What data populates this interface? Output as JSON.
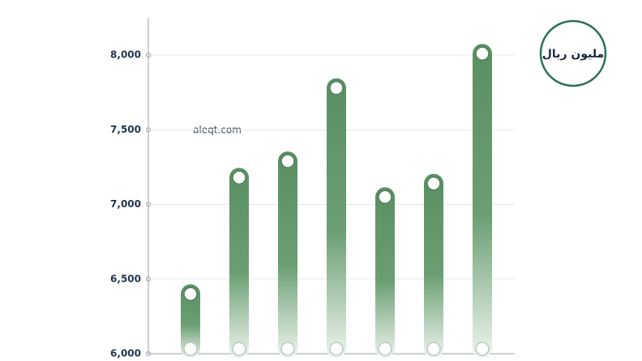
{
  "chart_data": {
    "type": "bar",
    "watermark": "aleqt.com",
    "unit_badge": "مليون ريال",
    "categories": [
      null,
      null,
      null,
      null,
      null,
      null,
      null
    ],
    "values": [
      6400,
      7180,
      7290,
      7780,
      7050,
      7140,
      8010
    ],
    "color": "#5f9468",
    "ylim": [
      6000,
      8250
    ],
    "yticks": [
      {
        "value": 6000,
        "label": "6,000"
      },
      {
        "value": 6500,
        "label": "6,500"
      },
      {
        "value": 7000,
        "label": "7,000"
      },
      {
        "value": 7500,
        "label": "7,500"
      },
      {
        "value": 8000,
        "label": "8,000"
      }
    ],
    "grid": true
  }
}
